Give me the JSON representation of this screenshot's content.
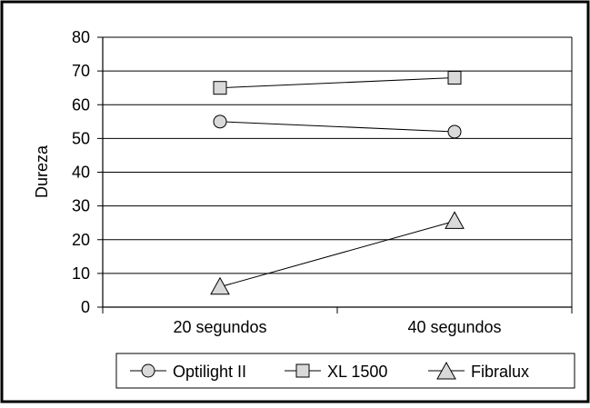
{
  "chart_data": {
    "type": "line",
    "categories": [
      "20 segundos",
      "40 segundos"
    ],
    "ylabel": "Dureza",
    "xlabel": "",
    "title": "",
    "ylim": [
      0,
      80
    ],
    "yticks": [
      0,
      10,
      20,
      30,
      40,
      50,
      60,
      70,
      80
    ],
    "grid": true,
    "legend_position": "bottom",
    "series": [
      {
        "name": "Optilight II",
        "marker": "circle",
        "values": [
          55,
          52
        ]
      },
      {
        "name": "XL 1500",
        "marker": "square",
        "values": [
          65,
          68
        ]
      },
      {
        "name": "Fibralux",
        "marker": "triangle",
        "values": [
          6,
          25.5
        ]
      }
    ],
    "colors": {
      "marker_fill": "#d9d9d9",
      "line": "#000000",
      "grid": "#000000"
    }
  }
}
